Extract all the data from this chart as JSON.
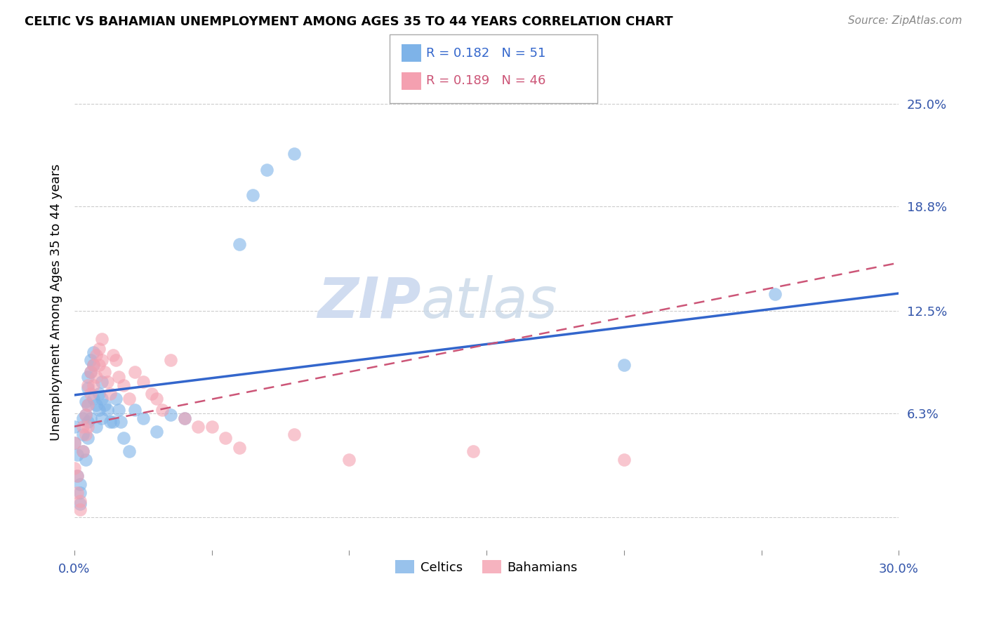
{
  "title": "CELTIC VS BAHAMIAN UNEMPLOYMENT AMONG AGES 35 TO 44 YEARS CORRELATION CHART",
  "source": "Source: ZipAtlas.com",
  "ylabel": "Unemployment Among Ages 35 to 44 years",
  "xlim": [
    0.0,
    0.3
  ],
  "ylim": [
    -0.02,
    0.28
  ],
  "xtick_positions": [
    0.0,
    0.05,
    0.1,
    0.15,
    0.2,
    0.25,
    0.3
  ],
  "xticklabels": [
    "0.0%",
    "",
    "",
    "",
    "",
    "",
    "30.0%"
  ],
  "ytick_positions": [
    0.0,
    0.063,
    0.125,
    0.188,
    0.25
  ],
  "ytick_labels": [
    "",
    "6.3%",
    "12.5%",
    "18.8%",
    "25.0%"
  ],
  "celtics_R": "0.182",
  "celtics_N": "51",
  "bahamians_R": "0.189",
  "bahamians_N": "46",
  "celtics_color": "#7EB3E8",
  "bahamians_color": "#F4A0B0",
  "trendline_celtics_color": "#3366CC",
  "trendline_bahamians_color": "#CC5577",
  "watermark_color": "#D0DCF0",
  "background_color": "#FFFFFF",
  "grid_color": "#CCCCCC",
  "celtics_x": [
    0.0,
    0.0,
    0.001,
    0.001,
    0.002,
    0.002,
    0.002,
    0.003,
    0.003,
    0.003,
    0.004,
    0.004,
    0.004,
    0.005,
    0.005,
    0.005,
    0.005,
    0.005,
    0.006,
    0.006,
    0.006,
    0.007,
    0.007,
    0.007,
    0.008,
    0.008,
    0.009,
    0.009,
    0.01,
    0.01,
    0.01,
    0.011,
    0.012,
    0.013,
    0.014,
    0.015,
    0.016,
    0.017,
    0.018,
    0.02,
    0.022,
    0.025,
    0.03,
    0.035,
    0.04,
    0.06,
    0.065,
    0.07,
    0.08,
    0.2,
    0.255
  ],
  "celtics_y": [
    0.055,
    0.045,
    0.038,
    0.025,
    0.02,
    0.015,
    0.008,
    0.06,
    0.05,
    0.04,
    0.07,
    0.062,
    0.035,
    0.085,
    0.078,
    0.068,
    0.058,
    0.048,
    0.095,
    0.088,
    0.06,
    0.1,
    0.092,
    0.072,
    0.068,
    0.055,
    0.075,
    0.065,
    0.082,
    0.072,
    0.06,
    0.068,
    0.065,
    0.058,
    0.058,
    0.072,
    0.065,
    0.058,
    0.048,
    0.04,
    0.065,
    0.06,
    0.052,
    0.062,
    0.06,
    0.165,
    0.195,
    0.21,
    0.22,
    0.092,
    0.135
  ],
  "bahamians_x": [
    0.0,
    0.0,
    0.001,
    0.001,
    0.002,
    0.002,
    0.003,
    0.003,
    0.004,
    0.004,
    0.005,
    0.005,
    0.005,
    0.006,
    0.006,
    0.007,
    0.007,
    0.008,
    0.008,
    0.009,
    0.009,
    0.01,
    0.01,
    0.011,
    0.012,
    0.013,
    0.014,
    0.015,
    0.016,
    0.018,
    0.02,
    0.022,
    0.025,
    0.028,
    0.03,
    0.032,
    0.035,
    0.04,
    0.045,
    0.05,
    0.055,
    0.06,
    0.08,
    0.1,
    0.145,
    0.2
  ],
  "bahamians_y": [
    0.045,
    0.03,
    0.025,
    0.015,
    0.01,
    0.005,
    0.055,
    0.04,
    0.062,
    0.05,
    0.08,
    0.068,
    0.055,
    0.088,
    0.075,
    0.092,
    0.08,
    0.098,
    0.085,
    0.102,
    0.092,
    0.108,
    0.095,
    0.088,
    0.082,
    0.075,
    0.098,
    0.095,
    0.085,
    0.08,
    0.072,
    0.088,
    0.082,
    0.075,
    0.072,
    0.065,
    0.095,
    0.06,
    0.055,
    0.055,
    0.048,
    0.042,
    0.05,
    0.035,
    0.04,
    0.035
  ]
}
